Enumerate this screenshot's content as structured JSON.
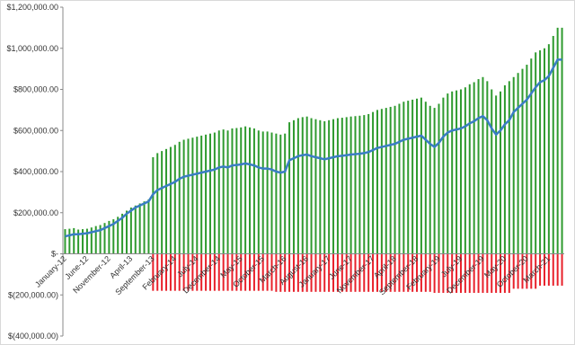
{
  "chart_data": {
    "type": "combo",
    "categories": [
      "January-12",
      null,
      null,
      null,
      null,
      "June-12",
      null,
      null,
      null,
      null,
      "November-12",
      null,
      null,
      null,
      null,
      "April-13",
      null,
      null,
      null,
      null,
      "September-13",
      null,
      null,
      null,
      null,
      "February-14",
      null,
      null,
      null,
      null,
      "July-14",
      null,
      null,
      null,
      null,
      "December-14",
      null,
      null,
      null,
      null,
      "May-15",
      null,
      null,
      null,
      null,
      "October-15",
      null,
      null,
      null,
      null,
      "March-16",
      null,
      null,
      null,
      null,
      "August-16",
      null,
      null,
      null,
      null,
      "January-17",
      null,
      null,
      null,
      null,
      "June-17",
      null,
      null,
      null,
      null,
      "November-17",
      null,
      null,
      null,
      null,
      "April-18",
      null,
      null,
      null,
      null,
      "September-18",
      null,
      null,
      null,
      null,
      "February-19",
      null,
      null,
      null,
      null,
      "July-19",
      null,
      null,
      null,
      null,
      "December-19",
      null,
      null,
      null,
      null,
      "May-20",
      null,
      null,
      null,
      null,
      "October-20",
      null,
      null,
      null,
      null,
      "March-21",
      null,
      null,
      null
    ],
    "series": [
      {
        "type": "bar",
        "color": "#2e9a2e",
        "values": [
          120000,
          122000,
          125000,
          118000,
          120000,
          122000,
          128000,
          135000,
          140000,
          150000,
          160000,
          168000,
          180000,
          195000,
          210000,
          225000,
          235000,
          245000,
          255000,
          265000,
          470000,
          490000,
          500000,
          510000,
          520000,
          530000,
          545000,
          555000,
          560000,
          565000,
          570000,
          575000,
          580000,
          585000,
          590000,
          600000,
          605000,
          600000,
          610000,
          612000,
          615000,
          620000,
          615000,
          610000,
          600000,
          595000,
          595000,
          590000,
          585000,
          580000,
          585000,
          640000,
          650000,
          660000,
          665000,
          668000,
          660000,
          655000,
          650000,
          645000,
          650000,
          655000,
          660000,
          662000,
          665000,
          668000,
          670000,
          672000,
          675000,
          680000,
          690000,
          700000,
          705000,
          710000,
          715000,
          720000,
          730000,
          740000,
          745000,
          750000,
          755000,
          760000,
          740000,
          720000,
          710000,
          730000,
          760000,
          780000,
          790000,
          795000,
          800000,
          810000,
          825000,
          835000,
          850000,
          860000,
          840000,
          800000,
          770000,
          790000,
          820000,
          840000,
          860000,
          880000,
          900000,
          920000,
          950000,
          980000,
          990000,
          1000000,
          1020000,
          1060000,
          1100000,
          1100000
        ]
      },
      {
        "type": "bar",
        "color": "#e8202a",
        "values": [
          0,
          0,
          0,
          0,
          0,
          0,
          0,
          0,
          0,
          0,
          0,
          0,
          0,
          0,
          0,
          0,
          0,
          0,
          0,
          0,
          -180000,
          -180000,
          -180000,
          -180000,
          -180000,
          -180000,
          -180000,
          -180000,
          -180000,
          -180000,
          -180000,
          -180000,
          -180000,
          -180000,
          -180000,
          -180000,
          -180000,
          -180000,
          -180000,
          -180000,
          -180000,
          -180000,
          -180000,
          -180000,
          -180000,
          -180000,
          -180000,
          -180000,
          -185000,
          -185000,
          -185000,
          -185000,
          -185000,
          -185000,
          -185000,
          -185000,
          -185000,
          -185000,
          -185000,
          -185000,
          -185000,
          -185000,
          -185000,
          -185000,
          -185000,
          -185000,
          -185000,
          -185000,
          -185000,
          -185000,
          -185000,
          -185000,
          -185000,
          -185000,
          -185000,
          -185000,
          -185000,
          -185000,
          -185000,
          -185000,
          -185000,
          -185000,
          -185000,
          -185000,
          -190000,
          -190000,
          -190000,
          -190000,
          -190000,
          -190000,
          -190000,
          -190000,
          -190000,
          -190000,
          -190000,
          -190000,
          -190000,
          -190000,
          -190000,
          -190000,
          -190000,
          -190000,
          -170000,
          -170000,
          -170000,
          -170000,
          -170000,
          -170000,
          -155000,
          -155000,
          -155000,
          -155000,
          -155000,
          -155000
        ]
      },
      {
        "type": "line",
        "color": "#3a7dc4",
        "values": [
          85000,
          90000,
          95000,
          95000,
          98000,
          100000,
          105000,
          110000,
          115000,
          125000,
          135000,
          145000,
          160000,
          175000,
          195000,
          210000,
          225000,
          235000,
          245000,
          255000,
          290000,
          310000,
          320000,
          330000,
          340000,
          350000,
          365000,
          375000,
          380000,
          385000,
          390000,
          395000,
          400000,
          405000,
          410000,
          420000,
          425000,
          420000,
          430000,
          432000,
          435000,
          440000,
          435000,
          430000,
          420000,
          415000,
          415000,
          410000,
          400000,
          395000,
          400000,
          455000,
          465000,
          475000,
          480000,
          483000,
          475000,
          470000,
          465000,
          460000,
          465000,
          470000,
          475000,
          477000,
          480000,
          483000,
          485000,
          487000,
          490000,
          495000,
          505000,
          515000,
          520000,
          525000,
          530000,
          535000,
          545000,
          555000,
          560000,
          565000,
          570000,
          575000,
          555000,
          535000,
          520000,
          540000,
          570000,
          590000,
          600000,
          605000,
          610000,
          620000,
          635000,
          645000,
          660000,
          670000,
          650000,
          610000,
          580000,
          600000,
          630000,
          650000,
          690000,
          710000,
          730000,
          750000,
          780000,
          810000,
          835000,
          845000,
          865000,
          905000,
          945000,
          945000
        ]
      }
    ],
    "ylim": [
      -400000,
      1200000
    ],
    "yticks": [
      {
        "value": -400000,
        "label": "$(400,000.00)"
      },
      {
        "value": -200000,
        "label": "$(200,000.00)"
      },
      {
        "value": 0,
        "label": "$-"
      },
      {
        "value": 200000,
        "label": "$200,000.00"
      },
      {
        "value": 400000,
        "label": "$400,000.00"
      },
      {
        "value": 600000,
        "label": "$600,000.00"
      },
      {
        "value": 800000,
        "label": "$800,000.00"
      },
      {
        "value": 1000000,
        "label": "$1,000,000.00"
      },
      {
        "value": 1200000,
        "label": "$1,200,000.00"
      }
    ],
    "grid": false
  }
}
